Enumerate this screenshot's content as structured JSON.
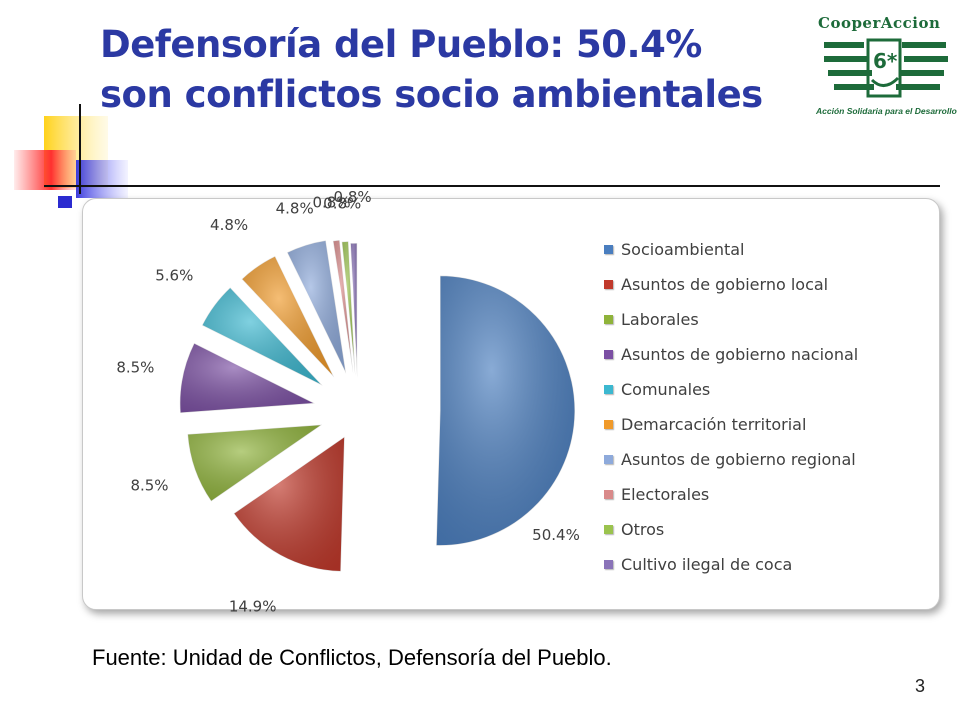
{
  "slide": {
    "title_line1": "Defensoría del Pueblo: 50.4%",
    "title_line2": "son conflictos socio ambientales",
    "source": "Fuente: Unidad de Conflictos, Defensoría del Pueblo.",
    "page_number": "3"
  },
  "logo": {
    "name": "CooperAccion",
    "tagline": "Acción Solidaria para el Desarrollo",
    "color": "#1d6b3a"
  },
  "chart_data": {
    "type": "pie",
    "exploded": true,
    "legend_position": "right",
    "slices": [
      {
        "label": "Socioambiental",
        "value": 50.4,
        "value_label": "50.4%",
        "color": "#4a7ebf"
      },
      {
        "label": "Asuntos de gobierno local",
        "value": 14.9,
        "value_label": "14.9%",
        "color": "#c0392b"
      },
      {
        "label": "Laborales",
        "value": 8.5,
        "value_label": "8.5%",
        "color": "#8fb33a"
      },
      {
        "label": "Asuntos de gobierno nacional",
        "value": 8.5,
        "value_label": "8.5%",
        "color": "#7b4fa3"
      },
      {
        "label": "Comunales",
        "value": 5.6,
        "value_label": "5.6%",
        "color": "#3cb8d0"
      },
      {
        "label": "Demarcación territorial",
        "value": 4.8,
        "value_label": "4.8%",
        "color": "#f09a2a"
      },
      {
        "label": "Asuntos de gobierno regional",
        "value": 4.8,
        "value_label": "4.8%",
        "color": "#8eaadb"
      },
      {
        "label": "Electorales",
        "value": 0.8,
        "value_label": "0.8%",
        "color": "#d98a8a"
      },
      {
        "label": "Otros",
        "value": 0.8,
        "value_label": "0.8%",
        "color": "#9bc34e"
      },
      {
        "label": "Cultivo ilegal de coca",
        "value": 0.8,
        "value_label": "0.8%",
        "color": "#8a73b8"
      }
    ]
  }
}
